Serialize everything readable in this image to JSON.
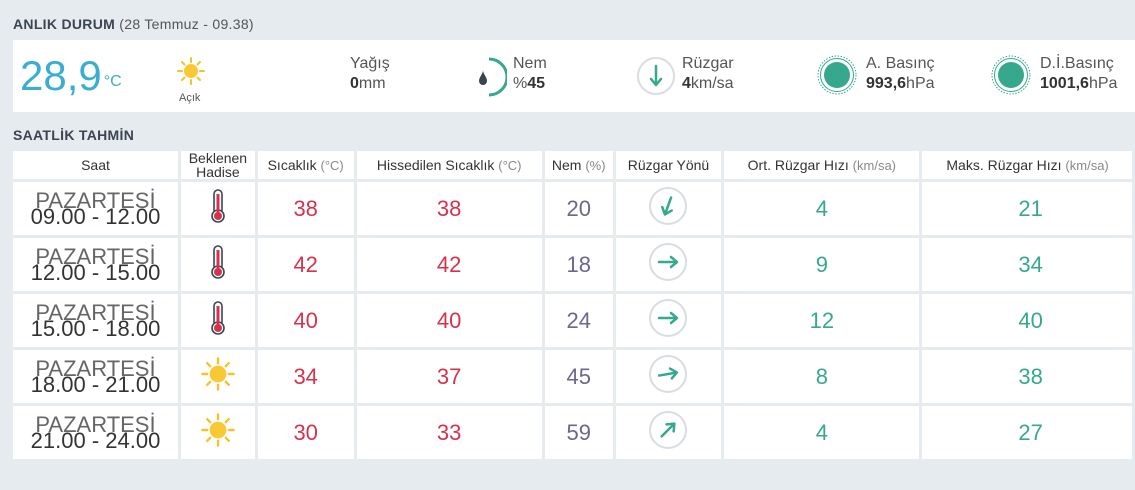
{
  "current": {
    "title": "ANLIK DURUM",
    "subtitle": "(28 Temmuz - 09.38)",
    "temperature": "28,9",
    "temperature_unit": "°C",
    "condition": "Açık",
    "precip_label": "Yağış",
    "precip_value": "0",
    "precip_unit": "mm",
    "humidity_label": "Nem",
    "humidity_prefix": "%",
    "humidity_value": "45",
    "wind_label": "Rüzgar",
    "wind_value": "4",
    "wind_unit": "km/sa",
    "pressure_label": "A. Basınç",
    "pressure_value": "993,6",
    "pressure_unit": "hPa",
    "sea_pressure_label": "D.İ.Basınç",
    "sea_pressure_value": "1001,6",
    "sea_pressure_unit": "hPa"
  },
  "hourly": {
    "title": "SAATLİK TAHMİN",
    "headers": {
      "saat": "Saat",
      "hadise_1": "Beklenen",
      "hadise_2": "Hadise",
      "sicaklik": "Sıcaklık",
      "sicaklik_unit": "(°C)",
      "hissedilen": "Hissedilen Sıcaklık",
      "hissedilen_unit": "(°C)",
      "nem": "Nem",
      "nem_unit": "(%)",
      "yon": "Rüzgar Yönü",
      "ort": "Ort. Rüzgar Hızı",
      "ort_unit": "(km/sa)",
      "maks": "Maks. Rüzgar Hızı",
      "maks_unit": "(km/sa)"
    },
    "rows": [
      {
        "day": "PAZARTESİ",
        "time": "09.00 - 12.00",
        "icon": "thermometer-icon",
        "temp": "38",
        "feels": "38",
        "hum": "20",
        "dir_deg": 200,
        "avg": "4",
        "max": "21"
      },
      {
        "day": "PAZARTESİ",
        "time": "12.00 - 15.00",
        "icon": "thermometer-icon",
        "temp": "42",
        "feels": "42",
        "hum": "18",
        "dir_deg": 90,
        "avg": "9",
        "max": "34"
      },
      {
        "day": "PAZARTESİ",
        "time": "15.00 - 18.00",
        "icon": "thermometer-icon",
        "temp": "40",
        "feels": "40",
        "hum": "24",
        "dir_deg": 90,
        "avg": "12",
        "max": "40"
      },
      {
        "day": "PAZARTESİ",
        "time": "18.00 - 21.00",
        "icon": "sun-icon",
        "temp": "34",
        "feels": "37",
        "hum": "45",
        "dir_deg": 80,
        "avg": "8",
        "max": "38"
      },
      {
        "day": "PAZARTESİ",
        "time": "21.00 - 24.00",
        "icon": "sun-icon",
        "temp": "30",
        "feels": "33",
        "hum": "59",
        "dir_deg": 45,
        "avg": "4",
        "max": "27"
      }
    ]
  },
  "colors": {
    "accent_temp": "#3aaed1",
    "hot": "#d6324d",
    "wind": "#35a88e",
    "humidity": "#6d6790"
  }
}
